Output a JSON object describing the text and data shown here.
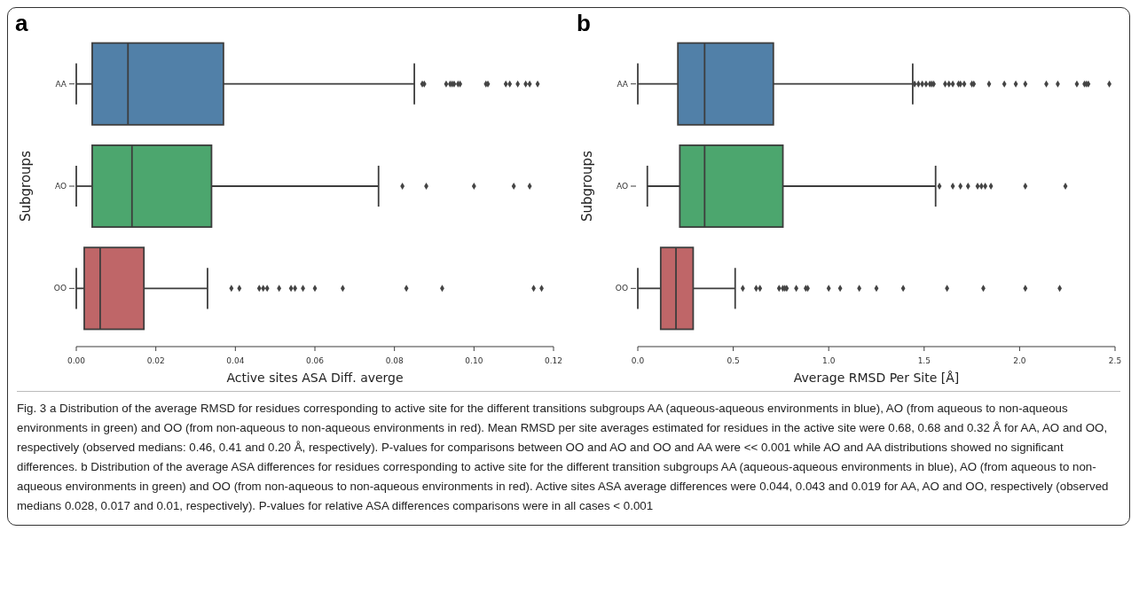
{
  "chart_data": [
    {
      "type": "box",
      "title": "a",
      "categories": [
        "AA",
        "AO",
        "OO"
      ],
      "colors": [
        "#5180a8",
        "#4ca66e",
        "#bf6668"
      ],
      "xlabel": "Active sites ASA Diff. averge",
      "ylabel": "Subgroups",
      "orientation": "horizontal",
      "xlim": [
        0,
        0.12
      ],
      "xticks": [
        {
          "value": 0,
          "label": "0.00"
        },
        {
          "value": 0.02,
          "label": "0.02"
        },
        {
          "value": 0.04,
          "label": "0.04"
        },
        {
          "value": 0.06,
          "label": "0.06"
        },
        {
          "value": 0.08,
          "label": "0.08"
        },
        {
          "value": 0.1,
          "label": "0.10"
        },
        {
          "value": 0.12,
          "label": "0.12"
        }
      ],
      "grid": false,
      "marker": "diamond",
      "boxes": [
        {
          "low": 0.0,
          "q1": 0.004,
          "median": 0.013,
          "q3": 0.037,
          "high": 0.085,
          "outliers": [
            0.087,
            0.0875,
            0.093,
            0.094,
            0.0945,
            0.095,
            0.096,
            0.0965,
            0.103,
            0.1035,
            0.108,
            0.109,
            0.111,
            0.113,
            0.114,
            0.116
          ]
        },
        {
          "low": 0.0,
          "q1": 0.004,
          "median": 0.014,
          "q3": 0.034,
          "high": 0.076,
          "outliers": [
            0.082,
            0.088,
            0.1,
            0.11,
            0.114
          ]
        },
        {
          "low": 0.0,
          "q1": 0.002,
          "median": 0.006,
          "q3": 0.017,
          "high": 0.033,
          "outliers": [
            0.039,
            0.041,
            0.046,
            0.047,
            0.048,
            0.051,
            0.054,
            0.055,
            0.057,
            0.06,
            0.067,
            0.083,
            0.092,
            0.115,
            0.117
          ]
        }
      ],
      "annotations": [
        "Fig. 3 a Distribution of the average RMSD for residues corresponding to active site for the different transitions subgroups AA (aqueous-aqueous environments in blue), AO (from aqueous to non-aqueous environments in green) and OO (from non-aqueous to non-aqueous environments in red). Mean RMSD per site averages estimated for residues in the active site were 0.68, 0.68 and 0.32 Å for AA, AO and OO, respectively (observed medians: 0.46, 0.41 and 0.20 Å, respectively). P-values for comparisons between OO and AO and OO and AA were << 0.001 while AO and AA distributions showed no significant differences. b Distribution of the average ASA differences for residues corresponding to active site for the different transition subgroups AA (aqueous-aqueous environments in blue), AO (from aqueous to non-aqueous environments in green) and OO (from non-aqueous to non-aqueous environments in red). Active sites ASA average differences were 0.044, 0.043 and 0.019 for AA, AO and OO, respectively (observed medians 0.028, 0.017 and 0.01, respectively). P-values for relative ASA differences comparisons were in all cases < 0.001"
      ]
    },
    {
      "type": "box",
      "title": "b",
      "categories": [
        "AA",
        "AO",
        "OO"
      ],
      "colors": [
        "#5180a8",
        "#4ca66e",
        "#bf6668"
      ],
      "xlabel": "Average RMSD Per Site [Å]",
      "ylabel": "Subgroups",
      "orientation": "horizontal",
      "xlim": [
        0,
        2.5
      ],
      "xticks": [
        {
          "value": 0,
          "label": "0.0"
        },
        {
          "value": 0.5,
          "label": "0.5"
        },
        {
          "value": 1,
          "label": "1.0"
        },
        {
          "value": 1.5,
          "label": "1.5"
        },
        {
          "value": 2,
          "label": "2.0"
        },
        {
          "value": 2.5,
          "label": "2.5"
        }
      ],
      "grid": false,
      "marker": "diamond",
      "boxes": [
        {
          "low": 0.0,
          "q1": 0.21,
          "median": 0.35,
          "q3": 0.71,
          "high": 1.44,
          "outliers": [
            1.45,
            1.47,
            1.49,
            1.51,
            1.53,
            1.54,
            1.55,
            1.61,
            1.63,
            1.65,
            1.68,
            1.69,
            1.71,
            1.75,
            1.76,
            1.84,
            1.92,
            1.98,
            2.03,
            2.14,
            2.2,
            2.3,
            2.34,
            2.35,
            2.36,
            2.47
          ]
        },
        {
          "low": 0.05,
          "q1": 0.22,
          "median": 0.35,
          "q3": 0.76,
          "high": 1.56,
          "outliers": [
            1.58,
            1.65,
            1.69,
            1.73,
            1.78,
            1.8,
            1.82,
            1.85,
            2.03,
            2.24
          ]
        },
        {
          "low": 0.0,
          "q1": 0.12,
          "median": 0.2,
          "q3": 0.29,
          "high": 0.51,
          "outliers": [
            0.55,
            0.62,
            0.64,
            0.74,
            0.76,
            0.77,
            0.78,
            0.83,
            0.88,
            0.89,
            1.0,
            1.06,
            1.16,
            1.25,
            1.39,
            1.62,
            1.81,
            2.03,
            2.21
          ]
        }
      ]
    }
  ]
}
